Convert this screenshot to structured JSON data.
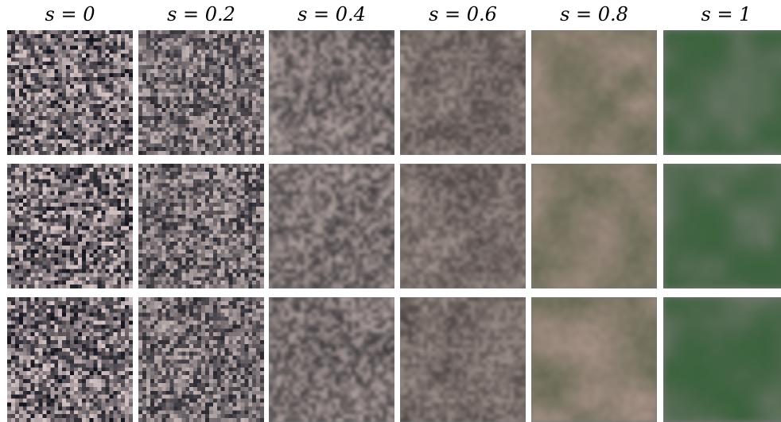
{
  "columns": [
    {
      "label": "s = 0",
      "noise": 1.0,
      "blur": 0,
      "tint": "#7a7378",
      "contrast": 1.0
    },
    {
      "label": "s = 0.2",
      "noise": 0.9,
      "blur": 0,
      "tint": "#7d7673",
      "contrast": 0.85
    },
    {
      "label": "s = 0.4",
      "noise": 0.75,
      "blur": 1,
      "tint": "#807668",
      "contrast": 0.7
    },
    {
      "label": "s = 0.6",
      "noise": 0.6,
      "blur": 1,
      "tint": "#7c6f60",
      "contrast": 0.55
    },
    {
      "label": "s = 0.8",
      "noise": 0.35,
      "blur": 2,
      "tint": "#9a8270",
      "contrast": 0.35
    },
    {
      "label": "s = 1",
      "noise": 0.2,
      "blur": 3,
      "tint": "#3f5a40",
      "contrast": 0.3
    }
  ],
  "rows": 3,
  "colors": {
    "background": "#ffffff",
    "noise_dark": "#12121c",
    "noise_light": "#d9c8c8",
    "green_accent": "#3e7a3e"
  }
}
